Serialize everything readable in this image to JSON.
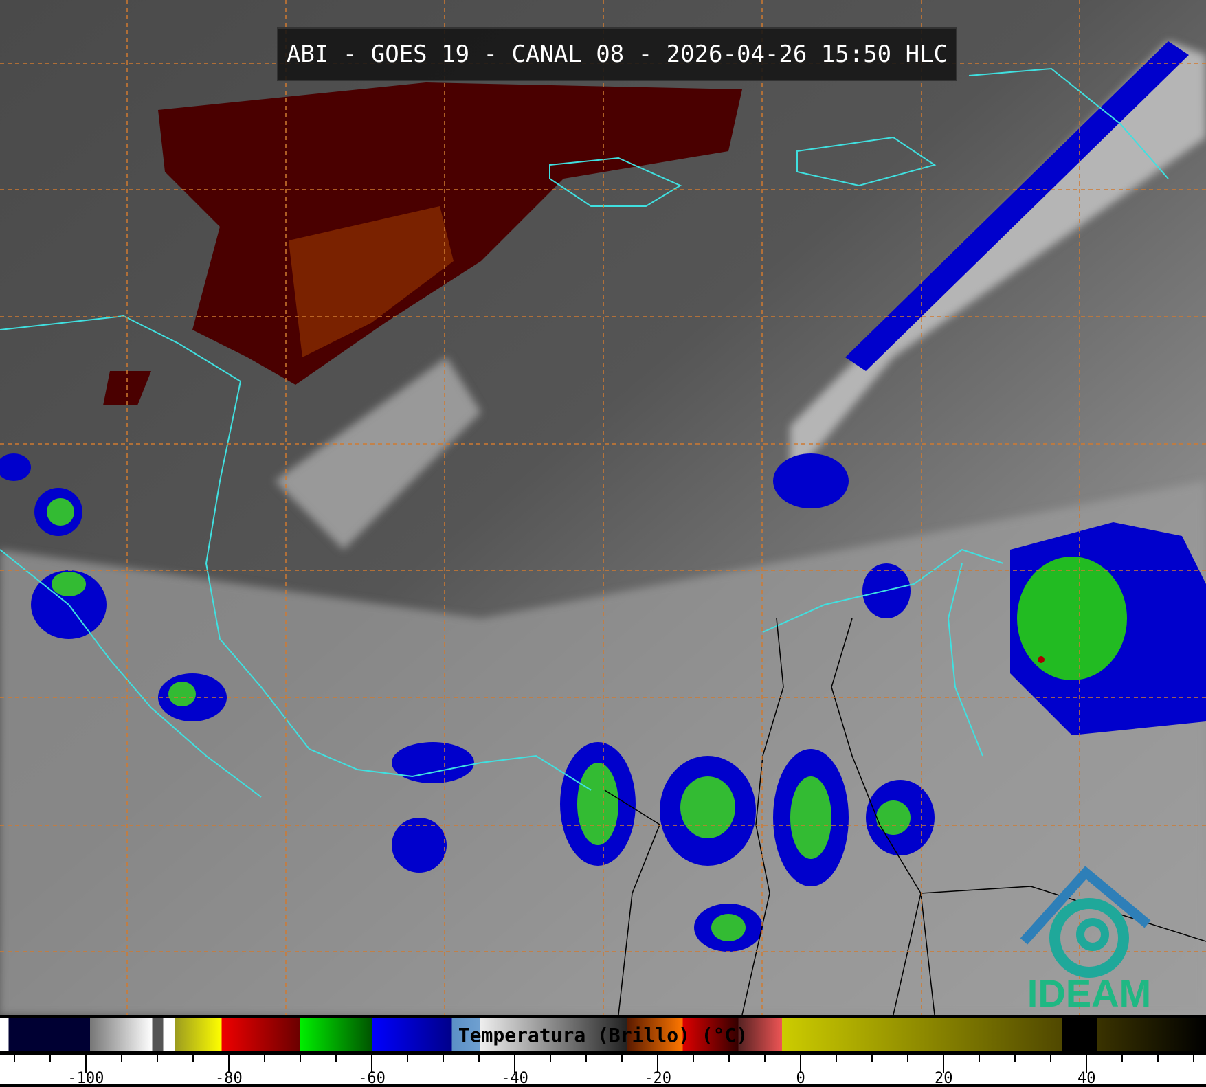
{
  "title": "ABI - GOES 19 - CANAL 08 - 2026-04-26 15:50 HLC",
  "colorbar": {
    "label": "Temperatura (Brillo) (°C)",
    "range": [
      -112,
      56.7
    ],
    "ticks": [
      -100,
      -80,
      -60,
      -40,
      -20,
      0,
      20,
      40
    ],
    "tick_labels": [
      "-100",
      "-80",
      "-60",
      "-40",
      "-20",
      "0",
      "20",
      "40"
    ],
    "stops": [
      [
        -112,
        "#ffffff"
      ],
      [
        -110.8,
        "#ffffff"
      ],
      [
        -110.8,
        "#000033"
      ],
      [
        -99.4,
        "#000033"
      ],
      [
        -99.4,
        "#777777"
      ],
      [
        -90.7,
        "#ffffff"
      ],
      [
        -90.7,
        "#555555"
      ],
      [
        -89.2,
        "#555555"
      ],
      [
        -89.2,
        "#ffffff"
      ],
      [
        -87.6,
        "#ffffff"
      ],
      [
        -87.6,
        "#9a9a20"
      ],
      [
        -81,
        "#ffff00"
      ],
      [
        -81,
        "#ee0000"
      ],
      [
        -70,
        "#6a0000"
      ],
      [
        -70,
        "#00ee00"
      ],
      [
        -60,
        "#005500"
      ],
      [
        -60,
        "#0000ff"
      ],
      [
        -48.8,
        "#00008a"
      ],
      [
        -48.8,
        "#5b8fc6"
      ],
      [
        -44.8,
        "#6fa0d0"
      ],
      [
        -44.8,
        "#eeeeee"
      ],
      [
        -24.3,
        "#222222"
      ],
      [
        -24.3,
        "#5a1a00"
      ],
      [
        -16.5,
        "#ff7700"
      ],
      [
        -16.5,
        "#dd0000"
      ],
      [
        -8.7,
        "#330000"
      ],
      [
        -8.7,
        "#552222"
      ],
      [
        -2.6,
        "#ee5555"
      ],
      [
        -2.6,
        "#cccc00"
      ],
      [
        36.5,
        "#504800"
      ],
      [
        36.5,
        "#000000"
      ],
      [
        41.5,
        "#000000"
      ],
      [
        41.5,
        "#3a3300"
      ],
      [
        56.7,
        "#000000"
      ]
    ]
  },
  "logo": {
    "text": "IDEAM",
    "color": "#1fb883",
    "accent": "#2e7fb8"
  },
  "colors": {
    "coastline": "#40e0e0",
    "borders": "#000000",
    "grid": "#d07a30"
  }
}
